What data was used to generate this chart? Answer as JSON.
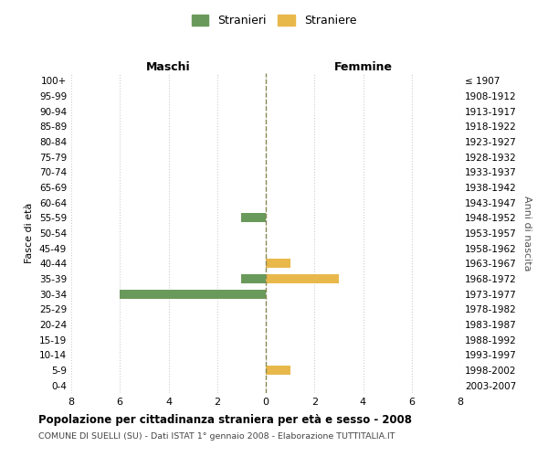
{
  "age_groups": [
    "100+",
    "95-99",
    "90-94",
    "85-89",
    "80-84",
    "75-79",
    "70-74",
    "65-69",
    "60-64",
    "55-59",
    "50-54",
    "45-49",
    "40-44",
    "35-39",
    "30-34",
    "25-29",
    "20-24",
    "15-19",
    "10-14",
    "5-9",
    "0-4"
  ],
  "birth_years": [
    "≤ 1907",
    "1908-1912",
    "1913-1917",
    "1918-1922",
    "1923-1927",
    "1928-1932",
    "1933-1937",
    "1938-1942",
    "1943-1947",
    "1948-1952",
    "1953-1957",
    "1958-1962",
    "1963-1967",
    "1968-1972",
    "1973-1977",
    "1978-1982",
    "1983-1987",
    "1988-1992",
    "1993-1997",
    "1998-2002",
    "2003-2007"
  ],
  "maschi_values": [
    0,
    0,
    0,
    0,
    0,
    0,
    0,
    0,
    0,
    1,
    0,
    0,
    0,
    1,
    6,
    0,
    0,
    0,
    0,
    0,
    0
  ],
  "femmine_values": [
    0,
    0,
    0,
    0,
    0,
    0,
    0,
    0,
    0,
    0,
    0,
    0,
    1,
    3,
    0,
    0,
    0,
    0,
    0,
    1,
    0
  ],
  "color_maschi": "#6a9a5b",
  "color_femmine": "#e8b84b",
  "title": "Popolazione per cittadinanza straniera per età e sesso - 2008",
  "subtitle": "COMUNE DI SUELLI (SU) - Dati ISTAT 1° gennaio 2008 - Elaborazione TUTTITALIA.IT",
  "xlabel_left": "Maschi",
  "xlabel_right": "Femmine",
  "ylabel_left": "Fasce di età",
  "ylabel_right": "Anni di nascita",
  "legend_maschi": "Stranieri",
  "legend_femmine": "Straniere",
  "xlim": 8,
  "background_color": "#ffffff",
  "grid_color": "#cccccc"
}
